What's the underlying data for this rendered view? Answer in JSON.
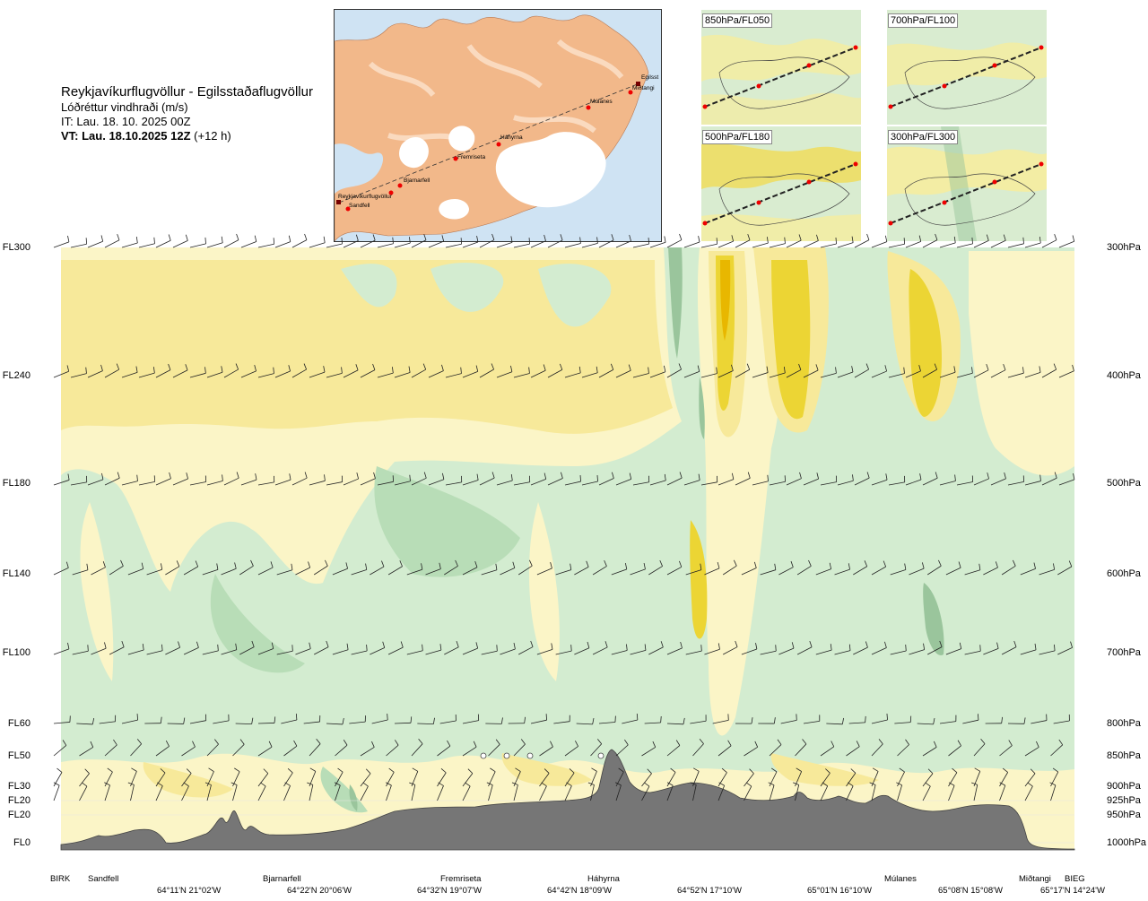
{
  "header": {
    "route": "Reykjavíkurflugvöllur - Egilsstaðaflugvöllur",
    "quantity": "Lóðréttur vindhraði (m/s)",
    "issue_time": "IT: Lau. 18. 10. 2025 00Z",
    "valid_time_bold": "VT: Lau. 18.10.2025 12Z",
    "valid_time_offset": "(+12 h)"
  },
  "map": {
    "places": [
      "Reykjavíkurflugvöllur",
      "Sandfell",
      "Bjarnarfell",
      "Fremriseta",
      "Háhyrna",
      "Múlanes",
      "Egilsst",
      "Miðtangi"
    ]
  },
  "minimaps": [
    {
      "label": "850hPa/FL050"
    },
    {
      "label": "700hPa/FL100"
    },
    {
      "label": "500hPa/FL180"
    },
    {
      "label": "300hPa/FL300"
    }
  ],
  "levels_left": [
    "FL300",
    "FL240",
    "FL180",
    "FL140",
    "FL100",
    "FL60",
    "FL50",
    "FL30",
    "FL20",
    "FL20",
    "FL0"
  ],
  "levels_right": [
    "300hPa",
    "400hPa",
    "500hPa",
    "600hPa",
    "700hPa",
    "800hPa",
    "850hPa",
    "900hPa",
    "925hPa",
    "950hPa",
    "1000hPa"
  ],
  "bottom": {
    "names": [
      "BIRK",
      "Sandfell",
      "Bjarnarfell",
      "Fremriseta",
      "Háhyrna",
      "Múlanes",
      "Miðtangi",
      "BIEG"
    ],
    "coords": [
      "64°11'N 21°02'W",
      "64°22'N 20°06'W",
      "64°32'N 19°07'W",
      "64°42'N 18°09'W",
      "64°52'N 17°10'W",
      "65°01'N 16°10'W",
      "65°08'N 15°08'W",
      "65°17'N 14°24'W"
    ]
  },
  "colors": {
    "green_light": "#d3ecd0",
    "green_mid": "#b8ddb7",
    "green_dark": "#9ac59c",
    "yellow_light": "#fbf5c7",
    "yellow_mid": "#f7e99a",
    "yellow_dark": "#ecd534",
    "orange_core": "#e8b700",
    "terrain": "#767676",
    "land": "#f2b88a",
    "glacier": "#ffffff",
    "sea": "#cfe3f3"
  }
}
